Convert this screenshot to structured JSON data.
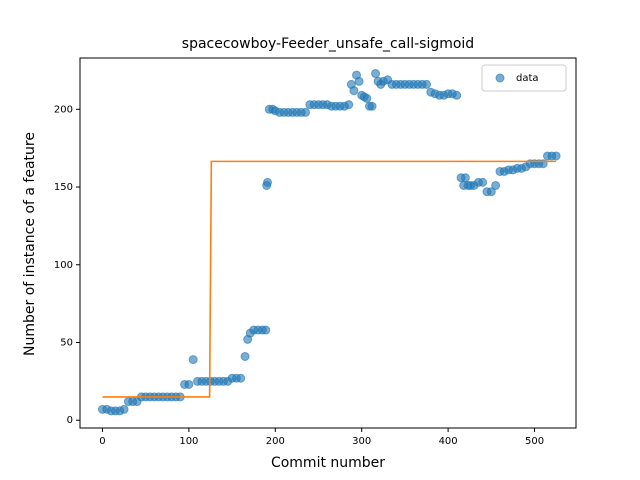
{
  "chart_data": {
    "type": "scatter",
    "title": "spacecowboy-Feeder_unsafe_call-sigmoid",
    "x_label": "Commit number",
    "y_label": "Number of instance of a feature",
    "xlim": [
      -26,
      548
    ],
    "ylim": [
      -5,
      233
    ],
    "xticks": [
      0,
      100,
      200,
      300,
      400,
      500
    ],
    "yticks": [
      0,
      50,
      100,
      150,
      200
    ],
    "legend": "upper right",
    "series": [
      {
        "name": "data",
        "color": "#1f77b4",
        "x": [
          0,
          5,
          10,
          15,
          20,
          25,
          30,
          35,
          40,
          45,
          50,
          55,
          60,
          65,
          70,
          75,
          80,
          85,
          90,
          95,
          100,
          105,
          110,
          115,
          120,
          125,
          130,
          135,
          140,
          145,
          150,
          155,
          160,
          165,
          168,
          171,
          175,
          180,
          185,
          189,
          190,
          191,
          193,
          197,
          200,
          205,
          210,
          215,
          220,
          225,
          230,
          235,
          240,
          245,
          250,
          255,
          260,
          265,
          270,
          275,
          280,
          285,
          288,
          291,
          294,
          297,
          300,
          303,
          306,
          309,
          312,
          316,
          319,
          322,
          325,
          330,
          335,
          340,
          345,
          350,
          355,
          360,
          365,
          370,
          375,
          380,
          385,
          390,
          395,
          400,
          405,
          410,
          415,
          418,
          420,
          423,
          426,
          430,
          435,
          440,
          445,
          450,
          455,
          460,
          465,
          470,
          475,
          480,
          485,
          490,
          495,
          500,
          505,
          510,
          515,
          520,
          525
        ],
        "values": [
          7,
          7,
          6,
          6,
          6,
          7,
          12,
          12,
          12,
          15,
          15,
          15,
          15,
          15,
          15,
          15,
          15,
          15,
          15,
          23,
          23,
          39,
          25,
          25,
          25,
          25,
          25,
          25,
          25,
          25,
          27,
          27,
          27,
          41,
          52,
          56,
          58,
          58,
          58,
          58,
          151,
          153,
          200,
          200,
          199,
          198,
          198,
          198,
          198,
          198,
          198,
          198,
          203,
          203,
          203,
          203,
          203,
          202,
          202,
          202,
          202,
          203,
          216,
          212,
          222,
          218,
          209,
          208,
          207,
          202,
          202,
          223,
          218,
          216,
          218,
          219,
          216,
          216,
          216,
          216,
          216,
          216,
          216,
          216,
          216,
          211,
          210,
          209,
          209,
          210,
          210,
          209,
          156,
          151,
          156,
          151,
          151,
          151,
          153,
          153,
          147,
          147,
          151,
          160,
          160,
          161,
          161,
          162,
          162,
          163,
          165,
          165,
          165,
          165,
          170,
          170,
          170
        ]
      }
    ],
    "fit": {
      "color": "#ff7f0e",
      "x": [
        0,
        124,
        126,
        525
      ],
      "values": [
        15,
        15,
        166.5,
        166.5
      ]
    }
  }
}
